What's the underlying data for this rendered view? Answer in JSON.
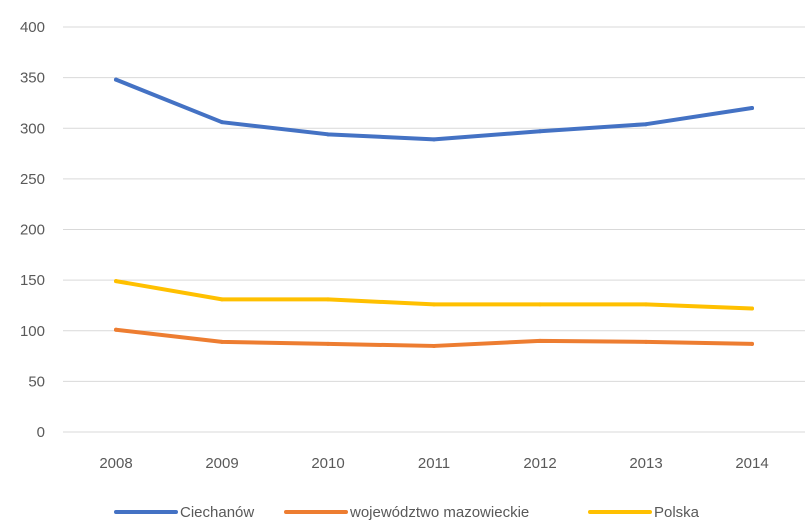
{
  "chart_data": {
    "type": "line",
    "title": "",
    "xlabel": "",
    "ylabel": "",
    "x": [
      "2008",
      "2009",
      "2010",
      "2011",
      "2012",
      "2013",
      "2014"
    ],
    "ylim": [
      0,
      400
    ],
    "yticks": [
      0,
      50,
      100,
      150,
      200,
      250,
      300,
      350,
      400
    ],
    "grid": true,
    "legend": "bottom",
    "series": [
      {
        "name": "Ciechanów",
        "color": "#4472c4",
        "values": [
          348,
          306,
          294,
          289,
          297,
          304,
          320
        ]
      },
      {
        "name": "województwo mazowieckie",
        "color": "#ed7d31",
        "values": [
          101,
          89,
          87,
          85,
          90,
          89,
          87
        ]
      },
      {
        "name": "Polska",
        "color": "#ffc000",
        "values": [
          149,
          131,
          131,
          126,
          126,
          126,
          122
        ]
      }
    ]
  }
}
